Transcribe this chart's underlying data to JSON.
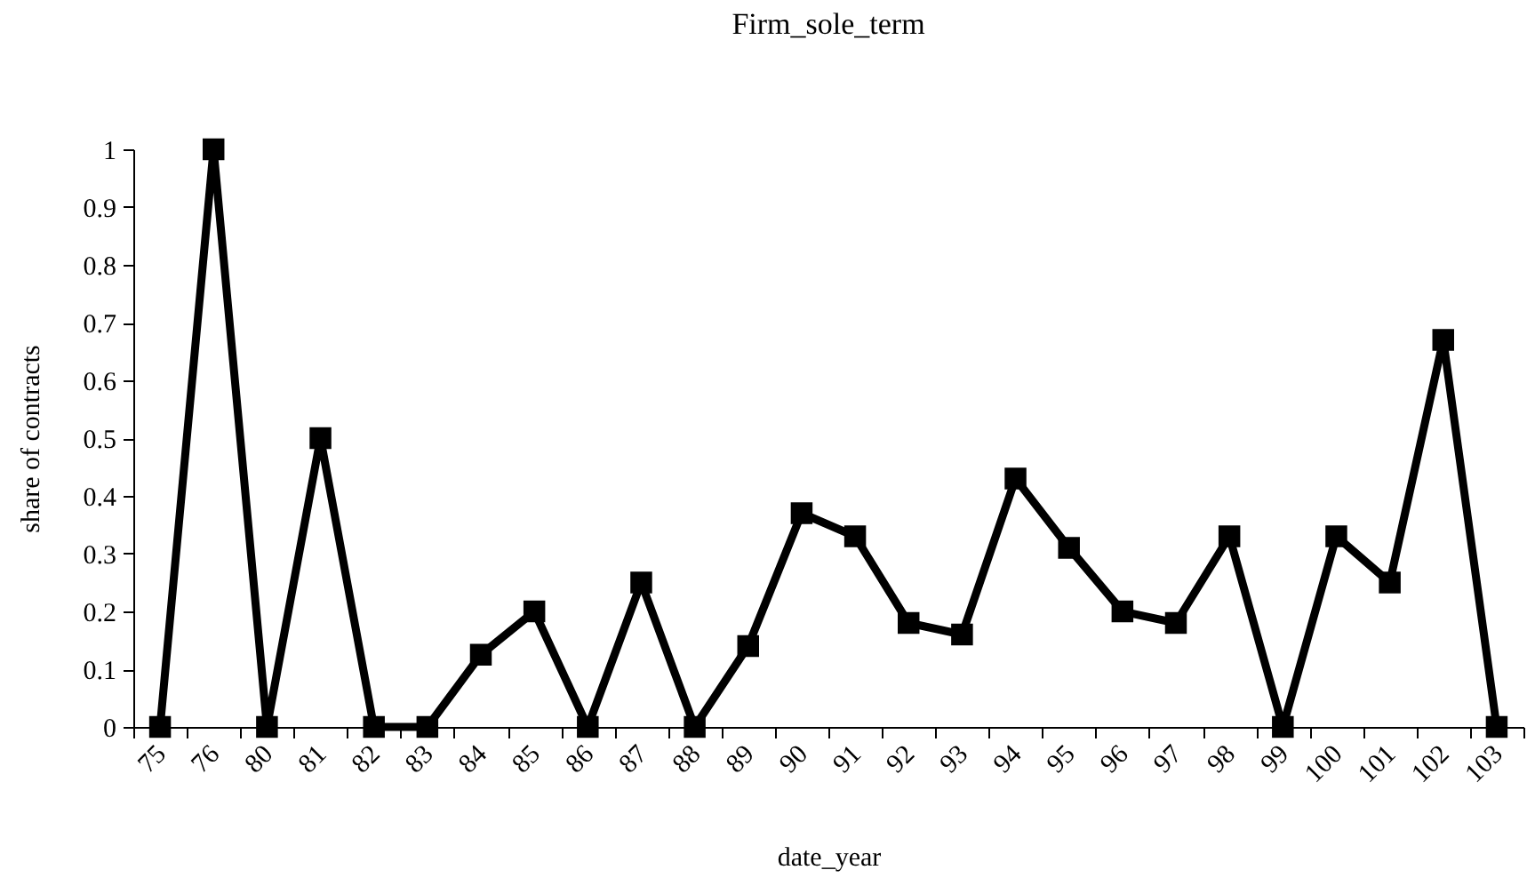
{
  "chart_data": {
    "type": "line",
    "title": "Firm_sole_term",
    "xlabel": "date_year",
    "ylabel": "share of contracts",
    "categories": [
      "75",
      "76",
      "80",
      "81",
      "82",
      "83",
      "84",
      "85",
      "86",
      "87",
      "88",
      "89",
      "90",
      "91",
      "92",
      "93",
      "94",
      "95",
      "96",
      "97",
      "98",
      "99",
      "100",
      "101",
      "102",
      "103"
    ],
    "series": [
      {
        "color": "#000000",
        "values": [
          0,
          1,
          0,
          0.5,
          0,
          0,
          0.125,
          0.2,
          0,
          0.25,
          0,
          0.14,
          0.37,
          0.33,
          0.18,
          0.16,
          0.43,
          0.31,
          0.2,
          0.18,
          0.33,
          0,
          0.33,
          0.25,
          0.67,
          0
        ]
      }
    ],
    "ylim": [
      0,
      1
    ],
    "yticks": [
      0,
      0.1,
      0.2,
      0.3,
      0.4,
      0.5,
      0.6,
      0.7,
      0.8,
      0.9,
      1
    ],
    "marker": "square",
    "line_style": "solid"
  }
}
